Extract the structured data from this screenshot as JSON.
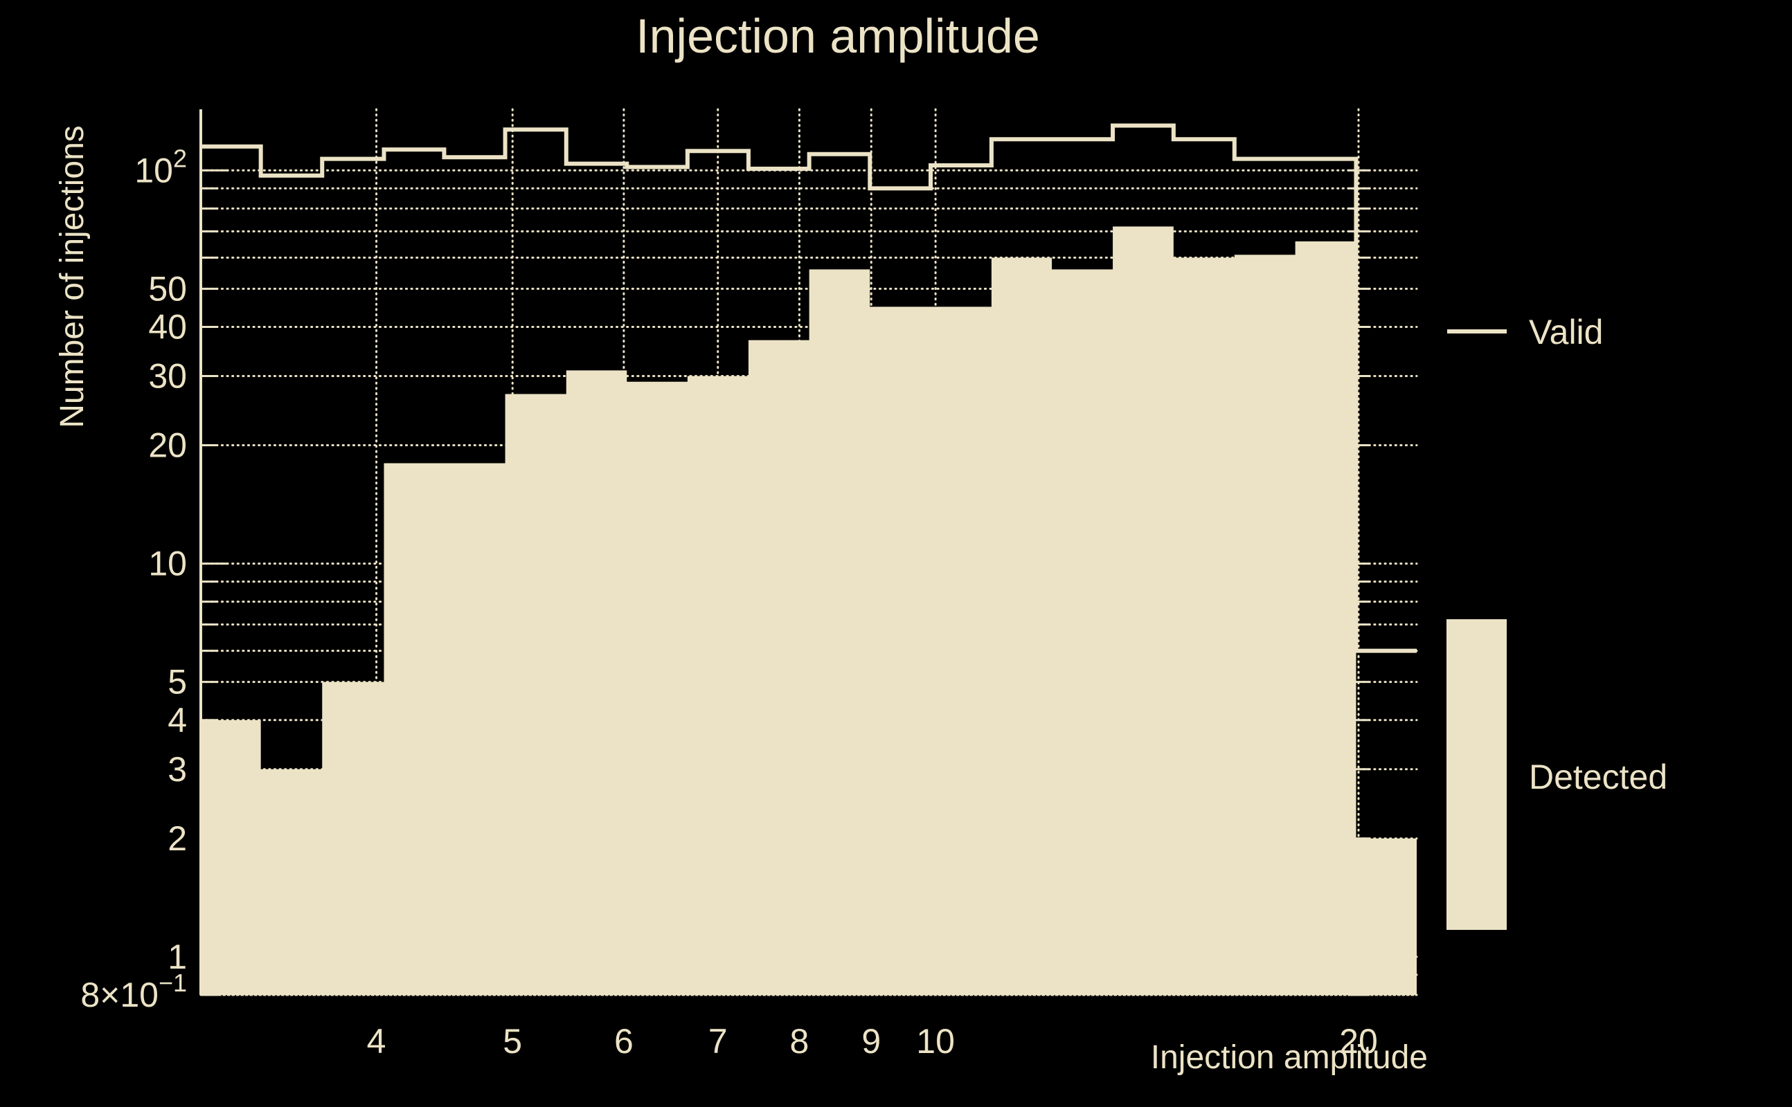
{
  "figure": {
    "title": "Injection amplitude",
    "xlabel": "Injection amplitude",
    "ylabel": "Number of injections"
  },
  "legend": {
    "items": [
      {
        "label": "Valid",
        "type": "line"
      },
      {
        "label": "Detected",
        "type": "patch"
      }
    ]
  },
  "colors": {
    "background": "#000000",
    "foreground": "#ece3c6",
    "text": "#f0e7ca"
  },
  "chart_data": {
    "type": "bar",
    "subtype": "log-log step histograms",
    "title": "Injection amplitude",
    "xlabel": "Injection amplitude",
    "ylabel": "Number of injections",
    "xlim": [
      3.0,
      22.0
    ],
    "ylim": [
      0.8,
      143
    ],
    "xscale": "log",
    "yscale": "log",
    "grid": "dotted minor and major gridlines",
    "legend_position": "right outside",
    "bin_edges": [
      3.0,
      3.31,
      3.66,
      4.05,
      4.47,
      4.94,
      5.46,
      6.03,
      6.66,
      7.36,
      8.13,
      8.98,
      9.92,
      10.96,
      12.1,
      13.37,
      14.77,
      16.32,
      18.03,
      19.92,
      22.0
    ],
    "series": [
      {
        "name": "Valid",
        "style": "step-outline",
        "values": [
          115,
          97,
          107,
          113,
          108,
          127,
          104,
          102,
          112,
          101,
          110,
          90,
          103,
          120,
          120,
          130,
          120,
          107,
          107,
          6
        ]
      },
      {
        "name": "Detected",
        "style": "step-filled",
        "values": [
          4,
          3,
          5,
          18,
          18,
          27,
          31,
          29,
          30,
          37,
          56,
          45,
          45,
          60,
          56,
          72,
          60,
          61,
          66,
          2
        ]
      }
    ],
    "x_ticks": [
      {
        "value": 4,
        "text": "4"
      },
      {
        "value": 5,
        "text": "5"
      },
      {
        "value": 6,
        "text": "6"
      },
      {
        "value": 7,
        "text": "7"
      },
      {
        "value": 8,
        "text": "8"
      },
      {
        "value": 9,
        "text": "9"
      },
      {
        "value": 10,
        "text": "10"
      },
      {
        "value": 20,
        "text": "20"
      }
    ],
    "y_tick_labels": [
      {
        "value": 100,
        "text": "10",
        "sup": "2"
      },
      {
        "value": 50,
        "text": "50"
      },
      {
        "value": 40,
        "text": "40"
      },
      {
        "value": 30,
        "text": "30"
      },
      {
        "value": 20,
        "text": "20"
      },
      {
        "value": 10,
        "text": "10"
      },
      {
        "value": 5,
        "text": "5"
      },
      {
        "value": 4,
        "text": "4"
      },
      {
        "value": 3,
        "text": "3"
      },
      {
        "value": 2,
        "text": "2"
      },
      {
        "value": 1,
        "text": "1"
      },
      {
        "value": 0.8,
        "text": "8×10",
        "sup": "−1"
      }
    ],
    "y_gridlines": [
      100,
      90,
      80,
      70,
      60,
      50,
      40,
      30,
      20,
      10,
      9,
      8,
      7,
      6,
      5,
      4,
      3,
      2,
      1,
      0.9
    ],
    "y_major_ticks": [
      100,
      10,
      1
    ],
    "y_minor_ticks": [
      90,
      80,
      70,
      60,
      50,
      40,
      30,
      20,
      9,
      8,
      7,
      6,
      5,
      4,
      3,
      2,
      0.9,
      0.8
    ],
    "x_gridlines_under": [
      4,
      5,
      6,
      7,
      8,
      9,
      10
    ],
    "x_gridline_over": 20
  }
}
